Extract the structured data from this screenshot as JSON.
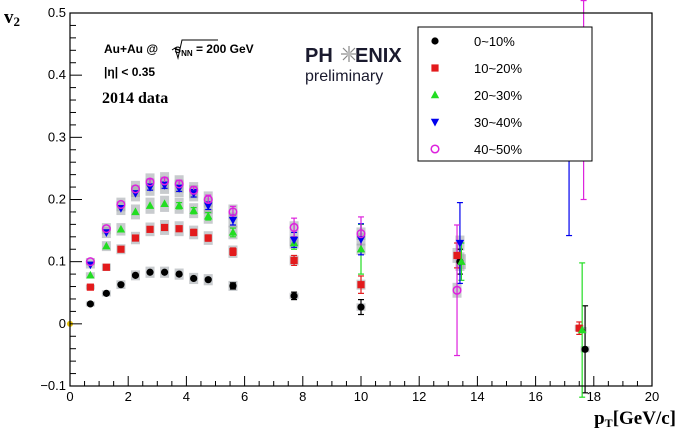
{
  "chart_data": {
    "type": "scatter",
    "xlabel": "p",
    "xlabel_sub": "T",
    "xlabel_unit": "[GeV/c]",
    "ylabel": "v",
    "ylabel_sub": "2",
    "xlim": [
      0,
      20
    ],
    "ylim": [
      -0.1,
      0.5
    ],
    "x_ticks": [
      "0",
      "2",
      "4",
      "6",
      "8",
      "10",
      "12",
      "14",
      "16",
      "18",
      "20"
    ],
    "y_ticks": [
      "−0.1",
      "0",
      "0.1",
      "0.2",
      "0.3",
      "0.4",
      "0.5"
    ],
    "grid": false,
    "legend_position": "top-right",
    "annotations": {
      "system_prefix": "Au+Au @ ",
      "energy_suffix": " = 200 GeV",
      "energy_symbol": "s",
      "energy_subscript": "NN",
      "eta_cut": "|η| < 0.35",
      "year": "2014 data",
      "logo_text": "PH    ENIX",
      "logo_subtitle": "preliminary"
    },
    "series": [
      {
        "name": "0~10%",
        "color": "#000000",
        "marker": "circle-filled",
        "x": [
          0.7,
          1.25,
          1.75,
          2.25,
          2.75,
          3.25,
          3.75,
          4.25,
          4.75,
          5.6,
          7.7,
          10.0,
          13.4,
          17.7
        ],
        "y": [
          0.032,
          0.049,
          0.063,
          0.078,
          0.083,
          0.083,
          0.08,
          0.073,
          0.071,
          0.061,
          0.045,
          0.027,
          0.1,
          -0.041
        ],
        "err": [
          0.002,
          0.003,
          0.003,
          0.003,
          0.003,
          0.003,
          0.004,
          0.004,
          0.004,
          0.005,
          0.006,
          0.012,
          0.02,
          0.07
        ],
        "sys": [
          0.004,
          0.005,
          0.007,
          0.008,
          0.009,
          0.009,
          0.009,
          0.009,
          0.009,
          0.008,
          0.005,
          0.006,
          0.015,
          0.005
        ]
      },
      {
        "name": "10~20%",
        "color": "#e31a1c",
        "marker": "square-filled",
        "x": [
          0.7,
          1.25,
          1.75,
          2.25,
          2.75,
          3.25,
          3.75,
          4.25,
          4.75,
          5.6,
          7.7,
          10.0,
          13.3,
          17.5
        ],
        "y": [
          0.059,
          0.091,
          0.12,
          0.138,
          0.152,
          0.155,
          0.153,
          0.147,
          0.138,
          0.116,
          0.102,
          0.063,
          0.11,
          -0.007
        ],
        "err": [
          0.002,
          0.003,
          0.003,
          0.003,
          0.004,
          0.004,
          0.004,
          0.005,
          0.005,
          0.006,
          0.008,
          0.014,
          0.02,
          0.01
        ],
        "sys": [
          0.004,
          0.006,
          0.008,
          0.01,
          0.011,
          0.012,
          0.012,
          0.011,
          0.011,
          0.01,
          0.008,
          0.008,
          0.012,
          0.005
        ]
      },
      {
        "name": "20~30%",
        "color": "#22dd22",
        "marker": "triangle-up",
        "x": [
          0.7,
          1.25,
          1.75,
          2.25,
          2.75,
          3.25,
          3.75,
          4.25,
          4.75,
          5.6,
          7.7,
          10.0,
          13.45,
          17.6
        ],
        "y": [
          0.078,
          0.125,
          0.152,
          0.18,
          0.19,
          0.193,
          0.19,
          0.182,
          0.173,
          0.147,
          0.13,
          0.12,
          0.1,
          -0.01
        ],
        "err": [
          0.002,
          0.003,
          0.003,
          0.004,
          0.004,
          0.004,
          0.005,
          0.005,
          0.006,
          0.007,
          0.01,
          0.04,
          0.03,
          0.108
        ],
        "sys": [
          0.005,
          0.008,
          0.01,
          0.012,
          0.013,
          0.013,
          0.013,
          0.012,
          0.012,
          0.011,
          0.009,
          0.009,
          0.012,
          0.005
        ]
      },
      {
        "name": "30~40%",
        "color": "#0000ee",
        "marker": "triangle-down",
        "x": [
          0.7,
          1.25,
          1.75,
          2.25,
          2.75,
          3.25,
          3.75,
          4.25,
          4.75,
          5.6,
          7.7,
          10.0,
          13.4,
          17.15
        ],
        "y": [
          0.095,
          0.147,
          0.186,
          0.21,
          0.22,
          0.223,
          0.218,
          0.21,
          0.19,
          0.167,
          0.135,
          0.136,
          0.13,
          0.287
        ],
        "err": [
          0.002,
          0.003,
          0.004,
          0.004,
          0.005,
          0.005,
          0.005,
          0.006,
          0.006,
          0.008,
          0.012,
          0.025,
          0.065,
          0.145
        ],
        "sys": [
          0.006,
          0.009,
          0.011,
          0.013,
          0.014,
          0.014,
          0.014,
          0.013,
          0.013,
          0.012,
          0.01,
          0.01,
          0.012,
          0.015
        ]
      },
      {
        "name": "40~50%",
        "color": "#dd22dd",
        "marker": "circle-open",
        "x": [
          0.7,
          1.25,
          1.75,
          2.25,
          2.75,
          3.25,
          3.75,
          4.25,
          4.75,
          5.6,
          7.7,
          10.0,
          13.3,
          17.65
        ],
        "y": [
          0.1,
          0.153,
          0.192,
          0.217,
          0.228,
          0.23,
          0.225,
          0.215,
          0.2,
          0.18,
          0.155,
          0.145,
          0.054,
          0.36
        ],
        "err": [
          0.002,
          0.003,
          0.004,
          0.004,
          0.005,
          0.005,
          0.006,
          0.006,
          0.007,
          0.009,
          0.015,
          0.027,
          0.105,
          0.16
        ],
        "sys": [
          0.006,
          0.009,
          0.011,
          0.013,
          0.014,
          0.014,
          0.014,
          0.013,
          0.013,
          0.012,
          0.01,
          0.01,
          0.012,
          0.02
        ]
      }
    ]
  }
}
